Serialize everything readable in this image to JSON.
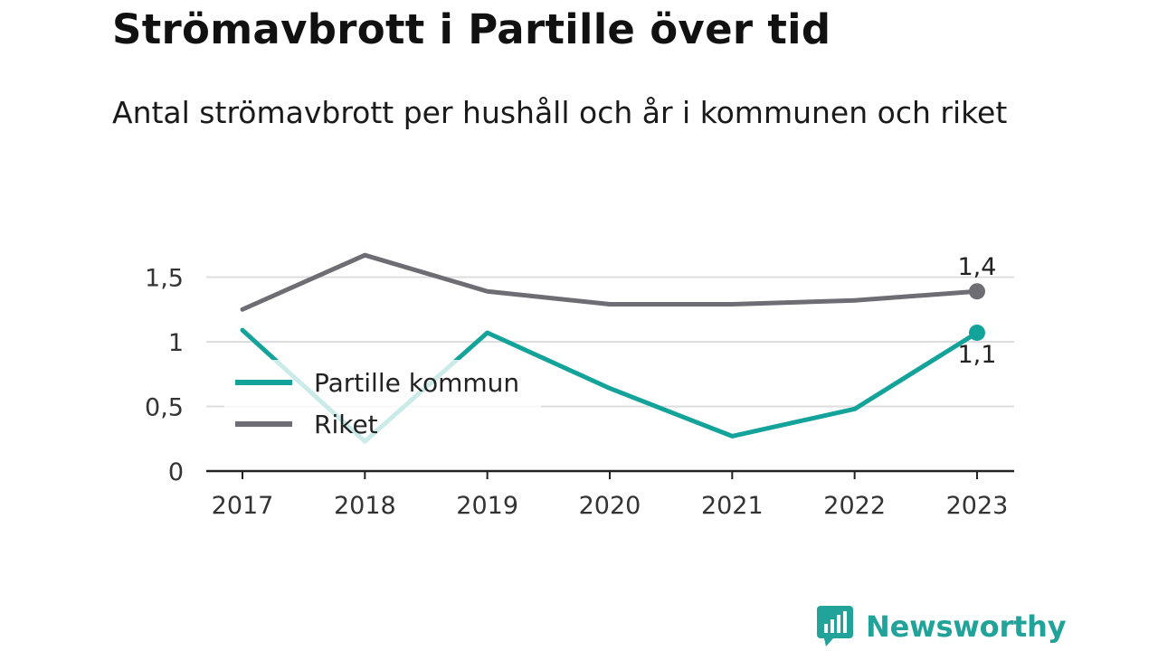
{
  "title": "Strömavbrott i Partille över tid",
  "subtitle": "Antal strömavbrott per hushåll och år i kommunen och riket",
  "brand": {
    "name": "Newsworthy",
    "icon": "newsworthy-logo-icon",
    "color": "#22a39a"
  },
  "colors": {
    "partille": "#14a39a",
    "riket": "#6e6d73",
    "grid": "#dddddd",
    "axis": "#222222"
  },
  "chart_data": {
    "type": "line",
    "x": [
      "2017",
      "2018",
      "2019",
      "2020",
      "2021",
      "2022",
      "2023"
    ],
    "ylim": [
      0,
      1.75
    ],
    "yticks": [
      0,
      0.5,
      1,
      1.5
    ],
    "ytick_labels": [
      "0",
      "0,5",
      "1",
      "1,5"
    ],
    "grid": true,
    "legend_position": "center-left",
    "series": [
      {
        "name": "Partille kommun",
        "values": [
          1.09,
          0.23,
          1.07,
          0.64,
          0.27,
          0.48,
          1.07
        ],
        "end_label": "1,1"
      },
      {
        "name": "Riket",
        "values": [
          1.25,
          1.67,
          1.39,
          1.29,
          1.29,
          1.32,
          1.39
        ],
        "end_label": "1,4"
      }
    ]
  }
}
